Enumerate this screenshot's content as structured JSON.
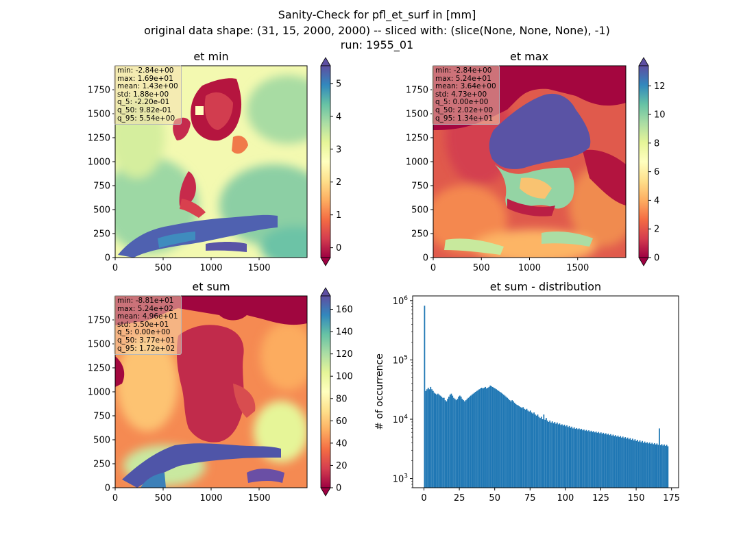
{
  "title": {
    "line1": "Sanity-Check for pfl_et_surf in [mm]",
    "line2": "original data shape: (31, 15, 2000, 2000) -- sliced with: (slice(None, None, None), -1)",
    "line3": "run: 1955_01"
  },
  "chart_data": [
    {
      "type": "heatmap",
      "title": "et min",
      "x_ticks": [
        0,
        500,
        1000,
        1500
      ],
      "y_ticks": [
        0,
        250,
        500,
        750,
        1000,
        1250,
        1500,
        1750
      ],
      "xlim": [
        0,
        2000
      ],
      "ylim": [
        0,
        2000
      ],
      "colormap": "Spectral",
      "colorbar_range": [
        -0.3,
        5.54
      ],
      "colorbar_ticks": [
        0,
        1,
        2,
        3,
        4,
        5
      ],
      "stats": {
        "min": "-2.84e+00",
        "max": "1.69e+01",
        "mean": "1.43e+00",
        "std": "1.88e+00",
        "q_5": "-2.20e-01",
        "q_50": "9.82e-01",
        "q_95": "5.54e+00"
      }
    },
    {
      "type": "heatmap",
      "title": "et max",
      "x_ticks": [
        0,
        500,
        1000,
        1500
      ],
      "y_ticks": [
        0,
        250,
        500,
        750,
        1000,
        1250,
        1500,
        1750
      ],
      "xlim": [
        0,
        2000
      ],
      "ylim": [
        0,
        2000
      ],
      "colormap": "Spectral",
      "colorbar_range": [
        0,
        13.4
      ],
      "colorbar_ticks": [
        0,
        2,
        4,
        6,
        8,
        10,
        12
      ],
      "stats": {
        "min": "-2.84e+00",
        "max": "5.24e+01",
        "mean": "3.64e+00",
        "std": "4.73e+00",
        "q_5": "0.00e+00",
        "q_50": "2.02e+00",
        "q_95": "1.34e+01"
      }
    },
    {
      "type": "heatmap",
      "title": "et sum",
      "x_ticks": [
        0,
        500,
        1000,
        1500
      ],
      "y_ticks": [
        0,
        250,
        500,
        750,
        1000,
        1250,
        1500,
        1750
      ],
      "xlim": [
        0,
        2000
      ],
      "ylim": [
        0,
        2000
      ],
      "colormap": "Spectral",
      "colorbar_range": [
        0,
        172
      ],
      "colorbar_ticks": [
        0,
        20,
        40,
        60,
        80,
        100,
        120,
        140,
        160
      ],
      "stats": {
        "min": "-8.81e+01",
        "max": "5.24e+02",
        "mean": "4.96e+01",
        "std": "5.50e+01",
        "q_5": "0.00e+00",
        "q_50": "3.77e+01",
        "q_95": "1.72e+02"
      }
    },
    {
      "type": "bar",
      "title": "et sum - distribution",
      "ylabel": "# of occurrence",
      "xlabel": "",
      "y_scale": "log",
      "ylim": [
        700,
        1200000
      ],
      "xlim": [
        -8,
        180
      ],
      "x_ticks": [
        0,
        25,
        50,
        75,
        100,
        125,
        150,
        175
      ],
      "y_ticks": [
        1000,
        10000,
        100000,
        1000000
      ],
      "y_tick_labels": [
        {
          "base": "10",
          "exp": "3"
        },
        {
          "base": "10",
          "exp": "4"
        },
        {
          "base": "10",
          "exp": "5"
        },
        {
          "base": "10",
          "exp": "6"
        }
      ],
      "color": "#1f77b4",
      "bin_width": 0.86,
      "bin_start": 0,
      "counts": [
        820000,
        30000,
        32000,
        34000,
        32000,
        35000,
        32000,
        30000,
        28000,
        27000,
        26000,
        27000,
        26000,
        25000,
        24000,
        23000,
        23000,
        21000,
        20000,
        22000,
        24000,
        26000,
        27000,
        25000,
        23000,
        22000,
        21000,
        22000,
        24000,
        25000,
        24000,
        22000,
        21000,
        20000,
        21000,
        22000,
        23000,
        24000,
        25000,
        26000,
        27000,
        28000,
        29000,
        30000,
        31000,
        32000,
        33000,
        34000,
        33000,
        34000,
        35000,
        33000,
        34000,
        35000,
        37000,
        36000,
        35000,
        34000,
        33000,
        32000,
        31000,
        30000,
        29000,
        28000,
        27000,
        26000,
        25000,
        24000,
        23000,
        22000,
        21000,
        20000,
        21000,
        20000,
        19000,
        18000,
        17500,
        17000,
        16500,
        16000,
        15500,
        16000,
        15000,
        14500,
        15000,
        14000,
        13500,
        14000,
        13000,
        12500,
        13000,
        12000,
        11500,
        12000,
        11000,
        10500,
        11000,
        10000,
        12000,
        9800,
        10500,
        9500,
        9000,
        9500,
        8800,
        9200,
        8600,
        9000,
        8400,
        8800,
        8200,
        8500,
        8000,
        8200,
        7800,
        8100,
        7600,
        7900,
        7400,
        7700,
        7200,
        7500,
        7000,
        7300,
        6900,
        7100,
        6800,
        7000,
        6700,
        6900,
        6500,
        6700,
        6400,
        6600,
        6300,
        6500,
        6200,
        6400,
        6100,
        6300,
        6000,
        6200,
        5900,
        6100,
        5800,
        6000,
        5700,
        5900,
        5600,
        5800,
        5500,
        5700,
        5400,
        5600,
        5300,
        5500,
        5200,
        5400,
        5100,
        5300,
        5000,
        5200,
        4900,
        5100,
        4800,
        5000,
        4700,
        4900,
        4600,
        4800,
        4500,
        4700,
        4400,
        4600,
        4300,
        4500,
        4200,
        4400,
        4100,
        4300,
        4000,
        4200,
        3950,
        4100,
        3900,
        4050,
        3850,
        4000,
        3800,
        3950,
        3750,
        3900,
        3700,
        7000,
        3650,
        3800,
        3600,
        3750,
        3550,
        3700,
        3500
      ]
    }
  ]
}
